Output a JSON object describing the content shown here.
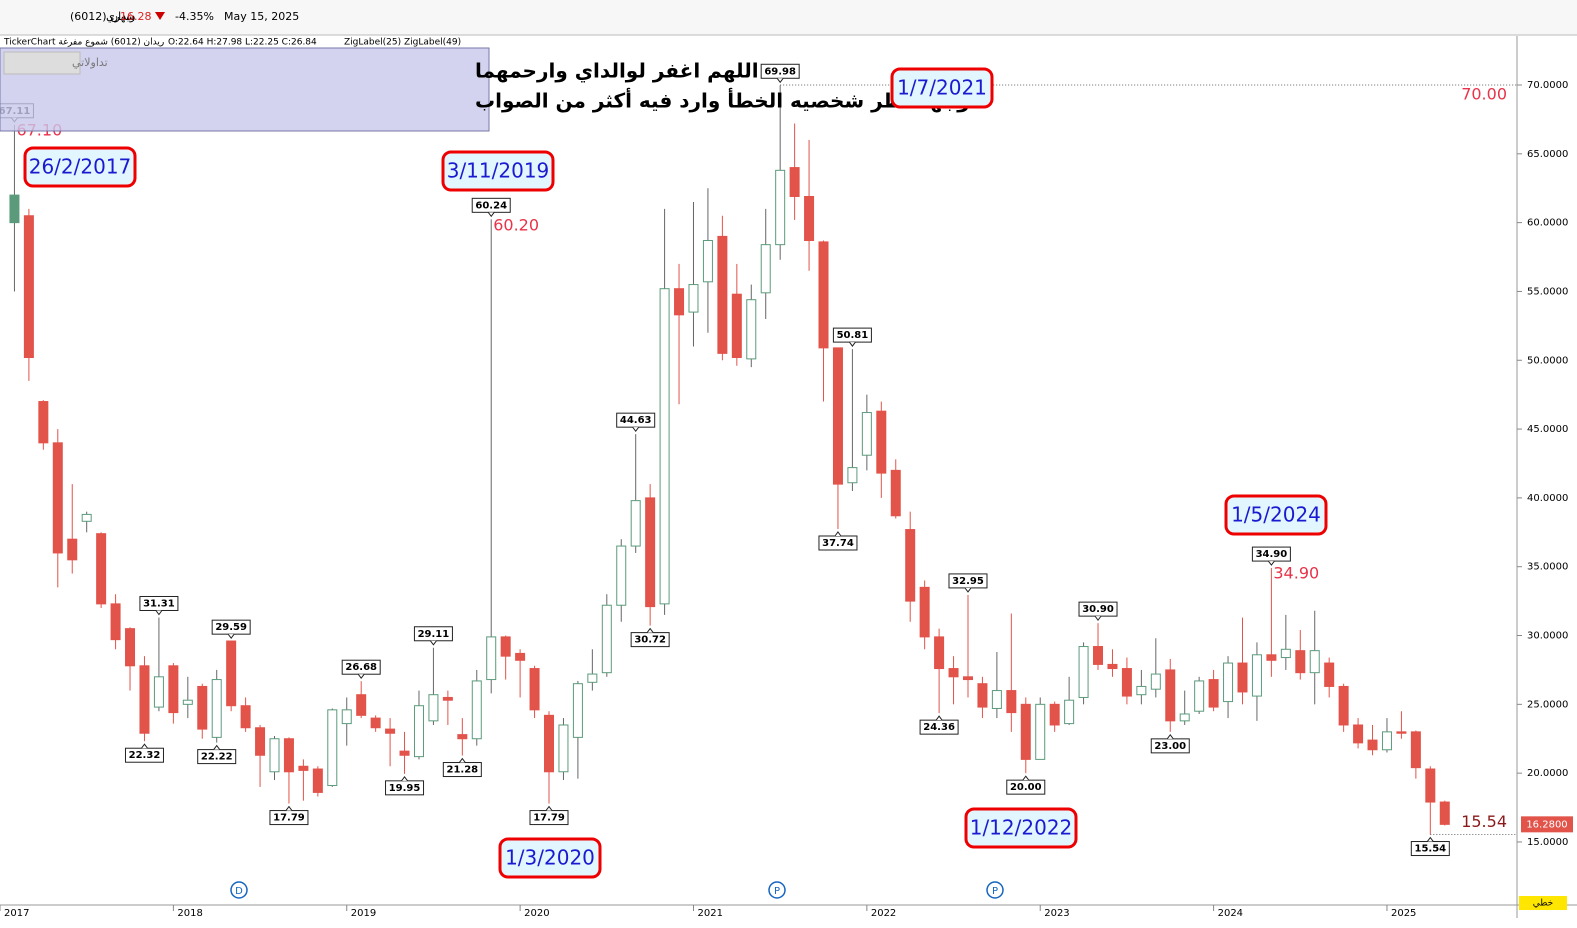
{
  "header": {
    "symbol": "ريدان (6012)",
    "period": "شهري",
    "price": "16.28",
    "change": "-4.35%",
    "date": "May 15, 2025"
  },
  "info_line": {
    "source": "TickerChart ريدان (6012) شموع مفرغة",
    "ohlc": "O:22.64 H:27.98 L:22.25 C:26.84",
    "indicators": "ZigLabel(25) ZigLabel(49)"
  },
  "note": {
    "line1": "اللهم اغفر لوالداي وارحمهما",
    "line2": "وجهة نظر شخصيه الخطأ وارد فيه أكثر من الصواب",
    "button": "تداولاتي"
  },
  "chart_data": {
    "type": "candlestick",
    "colors": {
      "up": "#5b9b7c",
      "down": "#e2534a",
      "level": "#e8334a"
    },
    "xlim": [
      -1,
      104
    ],
    "xticks": [
      {
        "value": -1,
        "label": "2017"
      },
      {
        "value": 11,
        "label": "2018"
      },
      {
        "value": 23,
        "label": "2019"
      },
      {
        "value": 35,
        "label": "2020"
      },
      {
        "value": 47,
        "label": "2021"
      },
      {
        "value": 59,
        "label": "2022"
      },
      {
        "value": 71,
        "label": "2023"
      },
      {
        "value": 83,
        "label": "2024"
      },
      {
        "value": 95,
        "label": "2025"
      }
    ],
    "ylim": [
      10.42,
      73.56
    ],
    "yticks": [
      {
        "value": 15,
        "label": "15.0000"
      },
      {
        "value": 20,
        "label": "20.0000"
      },
      {
        "value": 25,
        "label": "25.0000"
      },
      {
        "value": 30,
        "label": "30.0000"
      },
      {
        "value": 35,
        "label": "35.0000"
      },
      {
        "value": 40,
        "label": "40.0000"
      },
      {
        "value": 45,
        "label": "45.0000"
      },
      {
        "value": 50,
        "label": "50.0000"
      },
      {
        "value": 55,
        "label": "55.0000"
      },
      {
        "value": 60,
        "label": "60.0000"
      },
      {
        "value": 65,
        "label": "65.0000"
      },
      {
        "value": 70,
        "label": "70.0000"
      }
    ],
    "candles": [
      [
        60,
        67.1,
        55,
        62
      ],
      [
        60.5,
        61,
        48.5,
        50.2
      ],
      [
        47,
        47.1,
        43.5,
        44
      ],
      [
        44,
        45,
        33.5,
        36
      ],
      [
        37,
        41,
        34.5,
        35.5
      ],
      [
        38.3,
        39,
        37.5,
        38.8
      ],
      [
        37.4,
        37.5,
        32,
        32.3
      ],
      [
        32.3,
        33,
        29,
        29.7
      ],
      [
        30.5,
        30.6,
        26,
        27.8
      ],
      [
        27.8,
        28.5,
        22.32,
        22.9
      ],
      [
        24.8,
        31.31,
        24.5,
        27
      ],
      [
        27.8,
        28,
        23.6,
        24.4
      ],
      [
        25,
        27,
        24,
        25.3
      ],
      [
        26.3,
        26.5,
        22.5,
        23.2
      ],
      [
        22.6,
        27.5,
        22.22,
        26.8
      ],
      [
        29.6,
        29.59,
        24.5,
        24.9
      ],
      [
        24.9,
        25.5,
        23,
        23.3
      ],
      [
        23.3,
        23.5,
        19,
        21.3
      ],
      [
        20.1,
        22.7,
        19.5,
        22.5
      ],
      [
        22.5,
        22.6,
        17.79,
        20.1
      ],
      [
        20.5,
        21,
        18,
        20.2
      ],
      [
        20.3,
        20.5,
        18.3,
        18.6
      ],
      [
        19.1,
        24.7,
        19,
        24.6
      ],
      [
        23.6,
        25.5,
        22,
        24.6
      ],
      [
        25.7,
        26.68,
        24,
        24.2
      ],
      [
        24,
        24.2,
        23,
        23.3
      ],
      [
        23.2,
        24,
        20.5,
        22.9
      ],
      [
        21.6,
        23,
        19.95,
        21.3
      ],
      [
        21.2,
        26,
        21,
        24.9
      ],
      [
        23.8,
        29.11,
        23.5,
        25.7
      ],
      [
        25.5,
        26,
        23.5,
        25.3
      ],
      [
        22.8,
        24,
        21.28,
        22.5
      ],
      [
        22.5,
        27.5,
        22,
        26.7
      ],
      [
        26.8,
        60.24,
        25.8,
        29.9
      ],
      [
        29.9,
        30,
        26.8,
        28.5
      ],
      [
        28.7,
        29,
        25.5,
        28.2
      ],
      [
        27.6,
        27.8,
        24,
        24.6
      ],
      [
        24.2,
        24.5,
        17.79,
        20.1
      ],
      [
        20.1,
        24,
        19.5,
        23.5
      ],
      [
        22.6,
        26.7,
        19.6,
        26.5
      ],
      [
        26.6,
        29,
        26,
        27.2
      ],
      [
        27.3,
        33,
        27,
        32.2
      ],
      [
        32.2,
        37,
        31,
        36.5
      ],
      [
        36.5,
        44.63,
        36,
        39.8
      ],
      [
        40,
        41,
        30.72,
        32.1
      ],
      [
        32.3,
        61,
        31.5,
        55.2
      ],
      [
        55.2,
        57,
        46.8,
        53.3
      ],
      [
        53.5,
        61.5,
        51,
        55.5
      ],
      [
        55.7,
        62.5,
        52,
        58.7
      ],
      [
        59,
        60.5,
        50,
        50.5
      ],
      [
        54.8,
        57,
        49.6,
        50.2
      ],
      [
        50.1,
        55.5,
        49.5,
        54.4
      ],
      [
        54.9,
        61,
        53,
        58.4
      ],
      [
        58.4,
        69.98,
        57.3,
        63.8
      ],
      [
        64,
        67.2,
        60.2,
        61.9
      ],
      [
        61.9,
        66,
        56.5,
        58.7
      ],
      [
        58.6,
        58.7,
        47,
        50.9
      ],
      [
        50.9,
        50.9,
        37.74,
        41
      ],
      [
        41.1,
        50.81,
        40.5,
        42.2
      ],
      [
        43.1,
        47.5,
        42,
        46.2
      ],
      [
        46.3,
        47,
        40,
        41.8
      ],
      [
        42,
        42.8,
        38.5,
        38.7
      ],
      [
        37.7,
        39,
        31,
        32.5
      ],
      [
        33.5,
        34,
        29,
        29.9
      ],
      [
        29.9,
        30.5,
        24.36,
        27.6
      ],
      [
        27.6,
        28.5,
        25,
        27
      ],
      [
        27,
        32.95,
        25.5,
        26.8
      ],
      [
        26.5,
        27,
        24,
        24.8
      ],
      [
        24.7,
        28.8,
        24,
        26
      ],
      [
        26,
        31.6,
        23,
        24.4
      ],
      [
        25,
        25.5,
        20,
        21
      ],
      [
        21,
        25.5,
        21,
        25
      ],
      [
        25,
        25.2,
        23,
        23.5
      ],
      [
        23.6,
        27,
        23.5,
        25.3
      ],
      [
        25.5,
        29.5,
        25,
        29.2
      ],
      [
        29.2,
        30.9,
        27.5,
        27.9
      ],
      [
        27.9,
        29,
        27,
        27.6
      ],
      [
        27.6,
        28.4,
        25,
        25.6
      ],
      [
        25.7,
        27.5,
        25,
        26.3
      ],
      [
        26.1,
        29.8,
        25.5,
        27.2
      ],
      [
        27.5,
        28.3,
        23,
        23.8
      ],
      [
        23.8,
        26,
        23.5,
        24.3
      ],
      [
        24.5,
        27,
        24.3,
        26.7
      ],
      [
        26.8,
        27.5,
        24.5,
        24.8
      ],
      [
        25.2,
        28.5,
        24,
        28
      ],
      [
        28,
        31.3,
        25,
        25.9
      ],
      [
        25.6,
        29.5,
        23.8,
        28.6
      ],
      [
        28.6,
        34.9,
        27,
        28.2
      ],
      [
        28.4,
        31.5,
        27.5,
        29
      ],
      [
        28.9,
        30.4,
        26.8,
        27.3
      ],
      [
        27.3,
        31.8,
        25,
        28.9
      ],
      [
        28,
        28.4,
        25.5,
        26.3
      ],
      [
        26.3,
        26.5,
        23,
        23.5
      ],
      [
        23.5,
        24,
        21.8,
        22.2
      ],
      [
        22.4,
        23.5,
        21.3,
        21.7
      ],
      [
        21.7,
        24,
        21.5,
        23
      ],
      [
        23,
        24.5,
        22.5,
        22.9
      ],
      [
        23,
        23.1,
        19.6,
        20.4
      ],
      [
        20.3,
        20.5,
        15.54,
        17.9
      ],
      [
        17.9,
        18,
        16.2,
        16.28
      ]
    ],
    "zigzag": {
      "indices": [
        0,
        9,
        10,
        14,
        15,
        19,
        24,
        27,
        29,
        31,
        33,
        37,
        43,
        44,
        53,
        57,
        58,
        64,
        66,
        70,
        75,
        80,
        87,
        98
      ],
      "values": [
        67.11,
        22.32,
        31.31,
        22.22,
        29.59,
        17.79,
        26.68,
        19.95,
        29.11,
        21.28,
        60.24,
        17.79,
        44.63,
        30.72,
        69.98,
        37.74,
        50.81,
        24.36,
        32.95,
        20,
        30.9,
        23,
        34.9,
        15.54
      ],
      "value_labels": [
        "67.11",
        "22.32",
        "31.31",
        "22.22",
        "29.59",
        "17.79",
        "26.68",
        "19.95",
        "29.11",
        "21.28",
        "60.24",
        "17.79",
        "44.63",
        "30.72",
        "69.98",
        "37.74",
        "50.81",
        "24.36",
        "32.95",
        "20.00",
        "30.90",
        "23.00",
        "34.90",
        "15.54"
      ],
      "above": [
        true,
        false,
        true,
        false,
        true,
        false,
        true,
        false,
        true,
        false,
        true,
        false,
        true,
        false,
        true,
        false,
        true,
        false,
        true,
        false,
        true,
        false,
        true,
        false
      ]
    },
    "levels": {
      "values": [
        70,
        67.1,
        60.2,
        34.9,
        15.54
      ],
      "value_labels": [
        "70.00",
        "67.10",
        "60.20",
        "34.90",
        "15.54"
      ]
    },
    "last_price": {
      "value": 16.28,
      "label": "16.2800"
    },
    "dates": [
      "26/2/2017",
      "3/11/2019",
      "1/3/2020",
      "1/7/2021",
      "1/12/2022",
      "1/5/2024"
    ],
    "events": [
      "D",
      "P",
      "P"
    ],
    "mode": "خطي"
  }
}
